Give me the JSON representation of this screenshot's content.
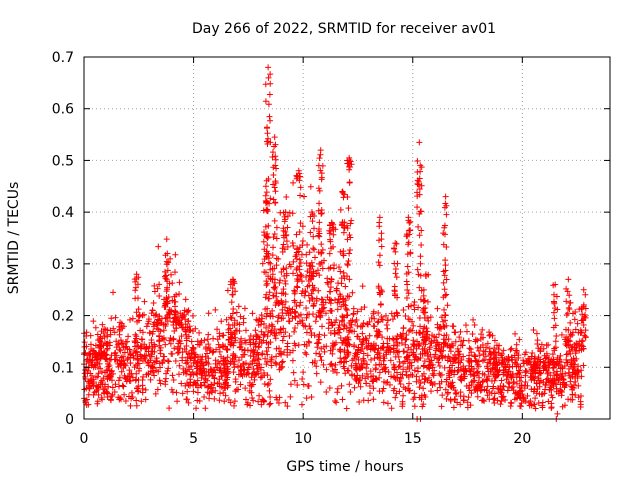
{
  "chart_data": {
    "type": "scatter",
    "title": "Day 266 of 2022, SRMTID for receiver av01",
    "xlabel": "GPS time / hours",
    "ylabel": "SRMTID / TECUs",
    "xlim": [
      0,
      24
    ],
    "ylim": [
      0,
      0.7
    ],
    "xticks": [
      0,
      5,
      10,
      15,
      20
    ],
    "xtick_labels": [
      "0",
      "5",
      "10",
      "15",
      "20"
    ],
    "yticks": [
      0,
      0.1,
      0.2,
      0.3,
      0.4,
      0.5,
      0.6,
      0.7
    ],
    "ytick_labels": [
      "0",
      "0.1",
      "0.2",
      "0.3",
      "0.4",
      "0.5",
      "0.6",
      "0.7"
    ],
    "grid": true,
    "marker": "+",
    "color": "#ff0000",
    "envelope": {
      "x": [
        0,
        1,
        2,
        3,
        3.5,
        4.5,
        5,
        6,
        6.5,
        7,
        7.5,
        8,
        8.5,
        9,
        9.5,
        10,
        10.5,
        11,
        11.5,
        12,
        12.5,
        13,
        13.5,
        14,
        14.5,
        15,
        15.5,
        16,
        16.5,
        17,
        18,
        19,
        20,
        21,
        21.5,
        22,
        22.8
      ],
      "y": [
        0.1,
        0.11,
        0.11,
        0.12,
        0.18,
        0.17,
        0.1,
        0.1,
        0.11,
        0.13,
        0.1,
        0.12,
        0.16,
        0.18,
        0.21,
        0.22,
        0.2,
        0.19,
        0.17,
        0.15,
        0.14,
        0.13,
        0.12,
        0.12,
        0.12,
        0.13,
        0.13,
        0.12,
        0.12,
        0.1,
        0.1,
        0.09,
        0.08,
        0.09,
        0.07,
        0.1,
        0.13
      ]
    },
    "peaks": [
      {
        "x": 0.8,
        "y": 0.17
      },
      {
        "x": 2.4,
        "y": 0.28
      },
      {
        "x": 3.8,
        "y": 0.32
      },
      {
        "x": 4.2,
        "y": 0.24
      },
      {
        "x": 6.8,
        "y": 0.27
      },
      {
        "x": 8.3,
        "y": 0.45
      },
      {
        "x": 8.4,
        "y": 0.68
      },
      {
        "x": 8.7,
        "y": 0.545
      },
      {
        "x": 9.2,
        "y": 0.4
      },
      {
        "x": 9.8,
        "y": 0.48
      },
      {
        "x": 10.4,
        "y": 0.4
      },
      {
        "x": 10.8,
        "y": 0.52
      },
      {
        "x": 11.3,
        "y": 0.38
      },
      {
        "x": 11.8,
        "y": 0.44
      },
      {
        "x": 12.1,
        "y": 0.505
      },
      {
        "x": 13.5,
        "y": 0.39
      },
      {
        "x": 14.2,
        "y": 0.34
      },
      {
        "x": 14.8,
        "y": 0.39
      },
      {
        "x": 15.3,
        "y": 0.535
      },
      {
        "x": 15.6,
        "y": 0.28
      },
      {
        "x": 16.5,
        "y": 0.43
      },
      {
        "x": 21.5,
        "y": 0.26
      },
      {
        "x": 22.1,
        "y": 0.27
      },
      {
        "x": 22.8,
        "y": 0.25
      }
    ],
    "n_points": 2600
  }
}
